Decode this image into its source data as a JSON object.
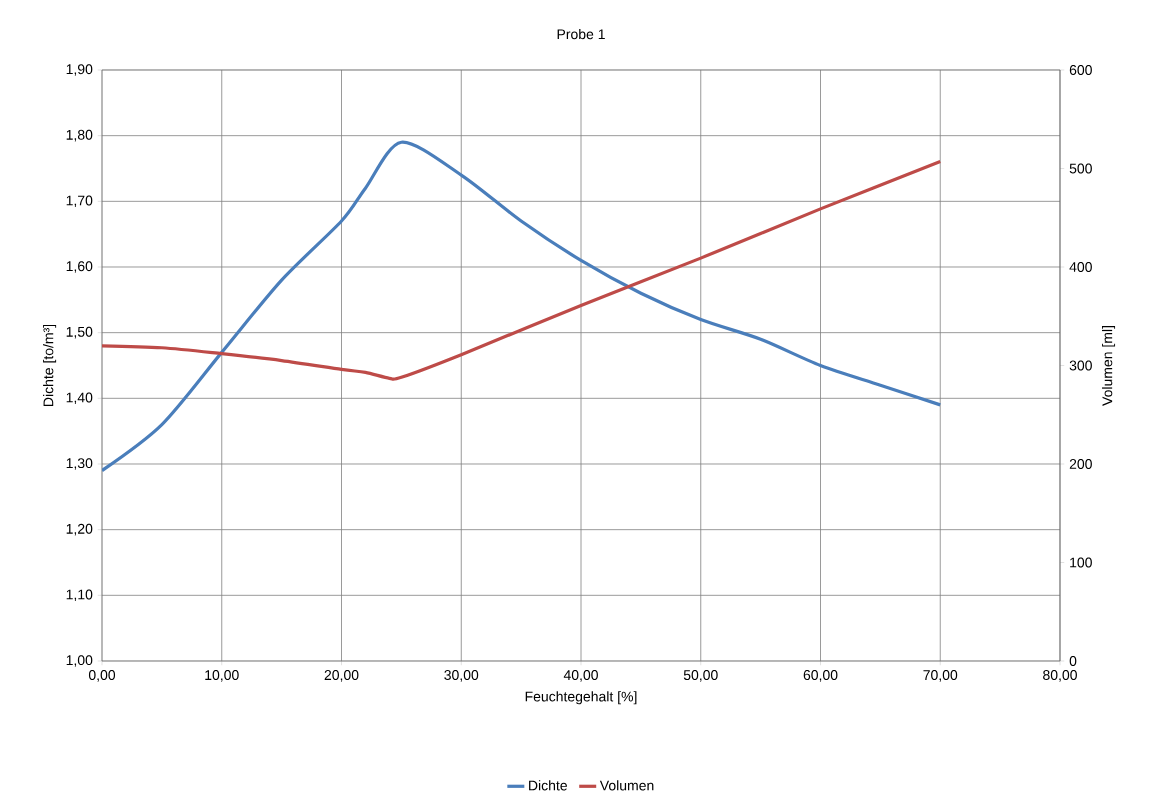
{
  "chart_data": {
    "type": "line",
    "title": "Probe 1",
    "xlabel": "Feuchtegehalt [%]",
    "ylabel": "Dichte [to/m³]",
    "y2label": "Volumen  [ml]",
    "series": [
      {
        "name": "Dichte",
        "color": "#4a7ebb",
        "x": [
          0,
          5,
          10,
          15,
          20,
          22,
          25,
          30,
          35,
          40,
          45,
          50,
          55,
          60,
          65,
          70
        ],
        "values": [
          1.29,
          1.36,
          1.47,
          1.58,
          1.67,
          1.72,
          1.79,
          1.74,
          1.67,
          1.61,
          1.56,
          1.52,
          1.49,
          1.45,
          1.42,
          1.39
        ]
      },
      {
        "name": "Volumen",
        "color": "#be4b48",
        "axis": "y2",
        "x": [
          0,
          5,
          10,
          15,
          20,
          22,
          24,
          25,
          30,
          40,
          50,
          60,
          70
        ],
        "values": [
          320,
          318,
          312,
          305,
          296,
          293,
          287,
          288,
          311,
          361,
          409,
          459,
          507
        ]
      }
    ],
    "xlim": [
      0,
      80
    ],
    "xticks": [
      {
        "value": 0,
        "label": "0,00"
      },
      {
        "value": 10,
        "label": "10,00"
      },
      {
        "value": 20,
        "label": "20,00"
      },
      {
        "value": 30,
        "label": "30,00"
      },
      {
        "value": 40,
        "label": "40,00"
      },
      {
        "value": 50,
        "label": "50,00"
      },
      {
        "value": 60,
        "label": "60,00"
      },
      {
        "value": 70,
        "label": "70,00"
      },
      {
        "value": 80,
        "label": "80,00"
      }
    ],
    "ylim": [
      1.0,
      1.9
    ],
    "yticks": [
      {
        "value": 1.0,
        "label": "1,00"
      },
      {
        "value": 1.1,
        "label": "1,10"
      },
      {
        "value": 1.2,
        "label": "1,20"
      },
      {
        "value": 1.3,
        "label": "1,30"
      },
      {
        "value": 1.4,
        "label": "1,40"
      },
      {
        "value": 1.5,
        "label": "1,50"
      },
      {
        "value": 1.6,
        "label": "1,60"
      },
      {
        "value": 1.7,
        "label": "1,70"
      },
      {
        "value": 1.8,
        "label": "1,80"
      },
      {
        "value": 1.9,
        "label": "1,90"
      }
    ],
    "y2lim": [
      0,
      600
    ],
    "y2ticks": [
      0,
      100,
      200,
      300,
      400,
      500,
      600
    ],
    "grid": true,
    "legend": "bottom",
    "marker": "none",
    "line_style": "solid"
  }
}
